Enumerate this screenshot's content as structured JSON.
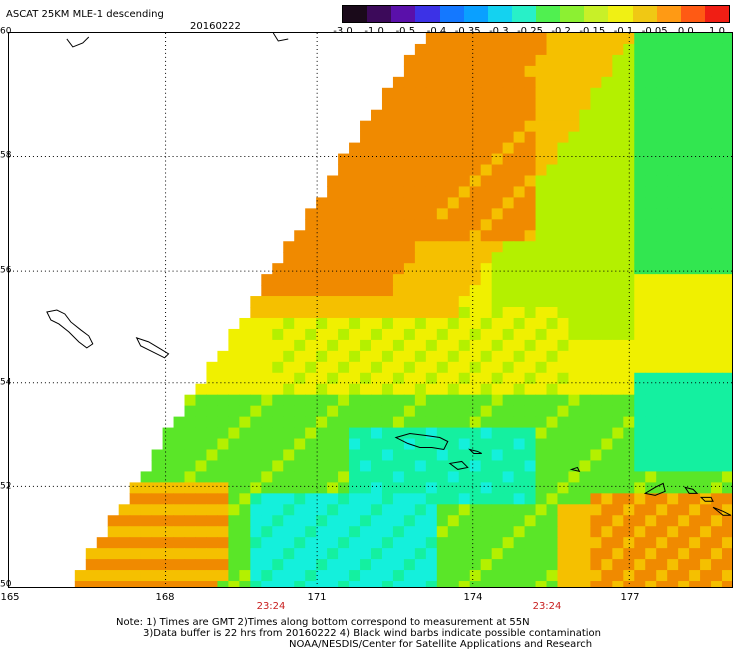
{
  "header": {
    "title": "ASCAT 25KM MLE-1 descending",
    "date": "20160222"
  },
  "colorbar": {
    "labels": [
      "-3.0",
      "-1.0",
      "-0.5",
      "-0.4",
      "-0.35",
      "-0.3",
      "-0.25",
      "-0.2",
      "-0.15",
      "-0.1",
      "-0.05",
      "0.0",
      "1.0"
    ],
    "colors": [
      "#1a0a1a",
      "#3c0a5a",
      "#5a10aa",
      "#3c32e6",
      "#1478ff",
      "#0aa0ff",
      "#14d2f0",
      "#28f0c8",
      "#50f050",
      "#8cf032",
      "#c8f028",
      "#f0f014",
      "#f0c814",
      "#ff9a14",
      "#ff5a14",
      "#f01e14"
    ]
  },
  "map": {
    "lat_labels": [
      "60",
      "58",
      "56",
      "54",
      "52",
      "50"
    ],
    "lon_labels": [
      "165",
      "168",
      "171",
      "174",
      "177"
    ],
    "time_labels": [
      "23:24",
      "23:24"
    ],
    "colors": {
      "orange": "#f08a00",
      "yellow_orange": "#f5c000",
      "yellow": "#f0f000",
      "yellow_green": "#b4f000",
      "green": "#5ae628",
      "bright_green": "#32e650",
      "cyan_green": "#14f0a0",
      "cyan": "#14f0dc"
    }
  },
  "notes": {
    "line1": "Note: 1) Times are GMT 2)Times along bottom correspond to measurement at 55N",
    "line2": "3)Data buffer is 22 hrs from 20160222 4) Black wind barbs indicate possible contamination",
    "line3": "NOAA/NESDIS/Center for Satellite Applications and Research"
  }
}
